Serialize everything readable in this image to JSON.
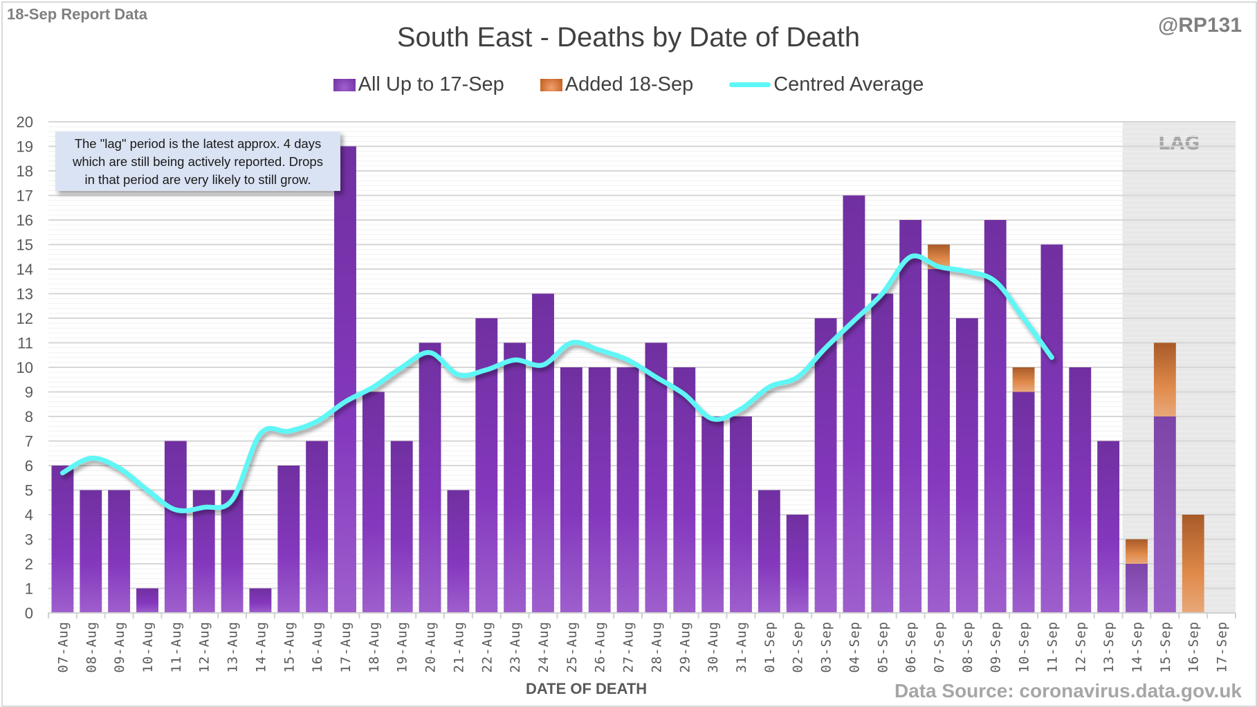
{
  "header": {
    "report_label": "18-Sep Report Data",
    "handle": "@RP131",
    "footer_source": "Data Source: coronavirus.data.gov.uk"
  },
  "annotation": {
    "line1": "The \"lag\" period is the latest approx. 4 days",
    "line2": "which are still being actively reported.  Drops",
    "line3": "in that period are very likely to still grow."
  },
  "colors": {
    "base": "#7030a0",
    "added": "#d86f2a",
    "average": "#5ff6f6",
    "lag_shade": "#e8e8e8"
  },
  "chart_data": {
    "type": "bar",
    "stacked": true,
    "title": "South East - Deaths by Date of Death",
    "xlabel": "DATE OF DEATH",
    "ylabel": "",
    "ylim": [
      0,
      20
    ],
    "yticks": [
      0,
      1,
      2,
      3,
      4,
      5,
      6,
      7,
      8,
      9,
      10,
      11,
      12,
      13,
      14,
      15,
      16,
      17,
      18,
      19,
      20
    ],
    "grid": true,
    "legend_position": "top-center",
    "lag_region": {
      "label": "LAG",
      "from": "14-Sep",
      "to": "17-Sep"
    },
    "categories": [
      "07-Aug",
      "08-Aug",
      "09-Aug",
      "10-Aug",
      "11-Aug",
      "12-Aug",
      "13-Aug",
      "14-Aug",
      "15-Aug",
      "16-Aug",
      "17-Aug",
      "18-Aug",
      "19-Aug",
      "20-Aug",
      "21-Aug",
      "22-Aug",
      "23-Aug",
      "24-Aug",
      "25-Aug",
      "26-Aug",
      "27-Aug",
      "28-Aug",
      "29-Aug",
      "30-Aug",
      "31-Aug",
      "01-Sep",
      "02-Sep",
      "03-Sep",
      "04-Sep",
      "05-Sep",
      "06-Sep",
      "07-Sep",
      "08-Sep",
      "09-Sep",
      "10-Sep",
      "11-Sep",
      "12-Sep",
      "13-Sep",
      "14-Sep",
      "15-Sep",
      "16-Sep",
      "17-Sep"
    ],
    "series": [
      {
        "name": "All Up to 17-Sep",
        "type": "bar",
        "values": [
          6,
          5,
          5,
          1,
          7,
          5,
          5,
          1,
          6,
          7,
          19,
          9,
          7,
          11,
          5,
          12,
          11,
          13,
          10,
          10,
          10,
          11,
          10,
          8,
          8,
          5,
          4,
          12,
          17,
          13,
          16,
          14,
          12,
          16,
          9,
          15,
          10,
          7,
          2,
          8,
          0,
          0
        ]
      },
      {
        "name": "Added 18-Sep",
        "type": "bar",
        "values": [
          0,
          0,
          0,
          0,
          0,
          0,
          0,
          0,
          0,
          0,
          0,
          0,
          0,
          0,
          0,
          0,
          0,
          0,
          0,
          0,
          0,
          0,
          0,
          0,
          0,
          0,
          0,
          0,
          0,
          0,
          0,
          1,
          0,
          0,
          1,
          0,
          0,
          0,
          1,
          3,
          4,
          0
        ]
      },
      {
        "name": "Centred Average",
        "type": "line",
        "values": [
          5.7,
          6.3,
          5.9,
          5.0,
          4.2,
          4.3,
          4.6,
          7.3,
          7.4,
          7.8,
          8.6,
          9.2,
          10.0,
          10.6,
          9.7,
          9.9,
          10.3,
          10.1,
          11.0,
          10.7,
          10.3,
          9.6,
          8.9,
          7.9,
          8.3,
          9.2,
          9.6,
          10.8,
          11.9,
          13.0,
          14.5,
          14.1,
          13.9,
          13.5,
          12.0,
          10.4,
          null,
          null,
          null,
          null,
          null,
          null
        ]
      }
    ]
  }
}
